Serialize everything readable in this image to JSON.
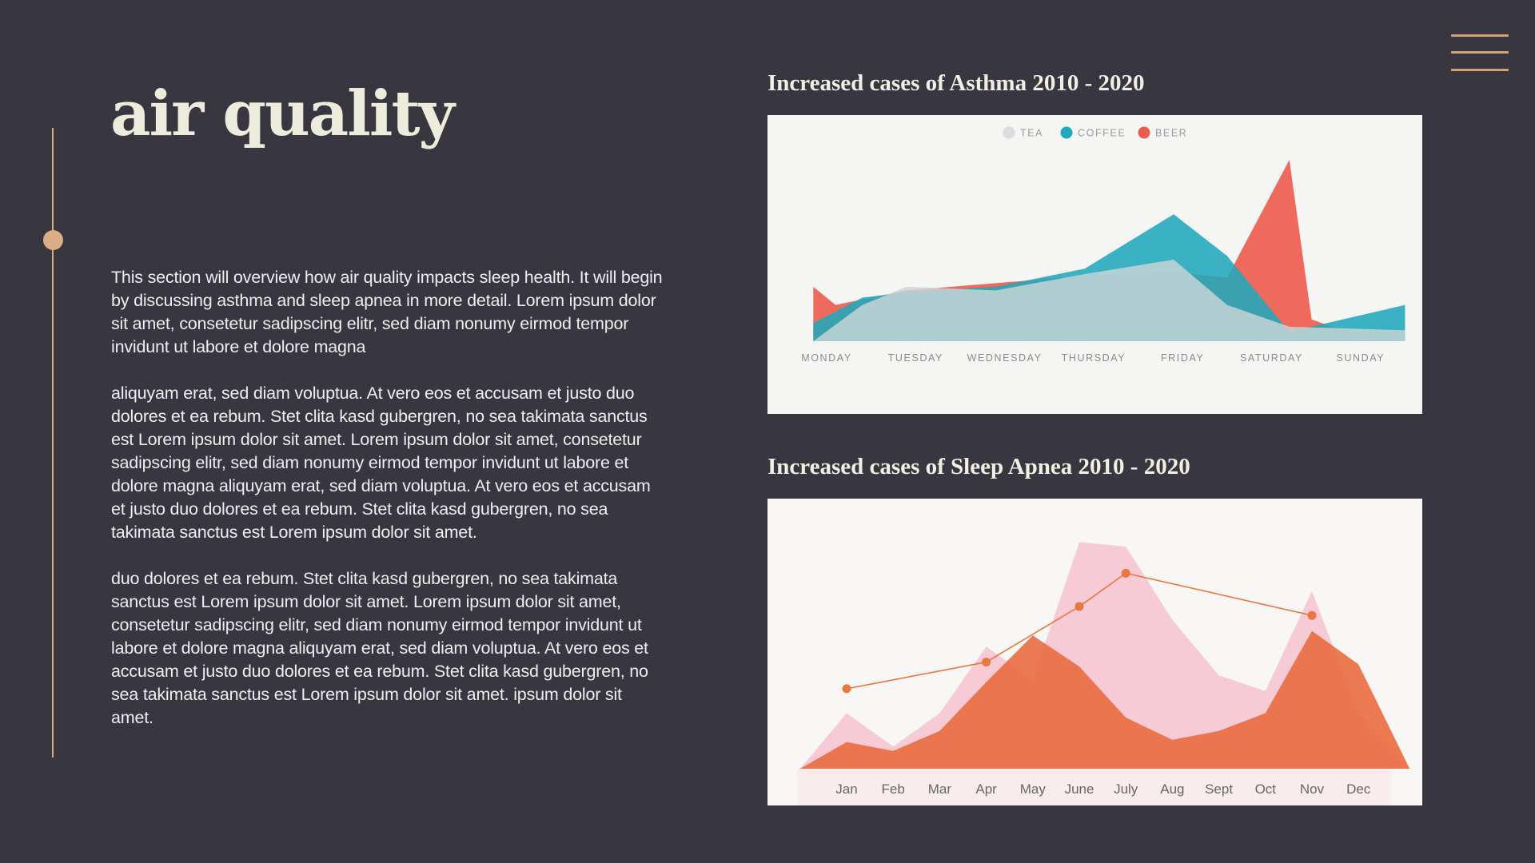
{
  "page": {
    "title": "air quality",
    "paragraphs": [
      "This section will overview how air quality impacts sleep health. It will begin by discussing asthma and sleep apnea in more detail. Lorem ipsum dolor sit amet, consetetur sadipscing elitr, sed diam nonumy eirmod tempor invidunt ut labore et dolore magna",
      "aliquyam erat, sed diam voluptua. At vero eos et accusam et justo duo dolores et ea rebum. Stet clita kasd gubergren, no sea takimata sanctus est Lorem ipsum dolor sit amet. Lorem ipsum dolor sit amet, consetetur sadipscing elitr, sed diam nonumy eirmod tempor invidunt ut labore et dolore magna aliquyam erat, sed diam voluptua. At vero eos et accusam et justo duo dolores et ea rebum. Stet clita kasd gubergren, no sea takimata sanctus est Lorem ipsum dolor sit amet.",
      "duo dolores et ea rebum. Stet clita kasd gubergren, no sea takimata sanctus est Lorem ipsum dolor sit amet. Lorem ipsum dolor sit amet, consetetur sadipscing elitr, sed diam nonumy eirmod tempor invidunt ut labore et dolore magna aliquyam erat, sed diam voluptua. At vero eos et accusam et justo duo dolores et ea rebum. Stet clita kasd gubergren, no sea takimata sanctus est Lorem ipsum dolor sit amet. ipsum dolor sit amet."
    ]
  },
  "icons": {
    "menu": "hamburger-menu-icon"
  },
  "colors": {
    "background": "#38373f",
    "accent": "#d4a373",
    "tea": "#c9d6d8",
    "coffee": "#20a9bc",
    "beer": "#ec5b4c",
    "pink": "#f6c3d0",
    "orange": "#e8693c",
    "line": "#e9773f"
  },
  "chart_data": [
    {
      "type": "area",
      "title": "Increased cases of Asthma 2010 - 2020",
      "categories": [
        "MONDAY",
        "TUESDAY",
        "WEDNESDAY",
        "THURSDAY",
        "FRIDAY",
        "SATURDAY",
        "SUNDAY"
      ],
      "legend_position": "top",
      "series": [
        {
          "name": "BEER",
          "color": "#ec5b4c",
          "x": [
            -0.15,
            0.1,
            0.9,
            1.9,
            2.9,
            3.9,
            4.5,
            5.2,
            5.45,
            5.85,
            6.5
          ],
          "values": [
            30,
            20,
            28,
            32,
            36,
            38,
            35,
            100,
            12,
            5,
            5
          ]
        },
        {
          "name": "COFFEE",
          "color": "#20a9bc",
          "x": [
            -0.15,
            0.4,
            0.9,
            1.9,
            2.9,
            3.9,
            4.5,
            5.2,
            5.45,
            6.5
          ],
          "values": [
            10,
            24,
            27,
            30,
            40,
            70,
            47,
            5,
            8,
            20
          ]
        },
        {
          "name": "TEA",
          "color": "#c9d6d8",
          "x": [
            -0.15,
            0.4,
            0.9,
            1.9,
            2.9,
            3.9,
            4.5,
            5.2,
            6.5
          ],
          "values": [
            0,
            20,
            30,
            28,
            37,
            45,
            20,
            8,
            6
          ]
        }
      ]
    },
    {
      "type": "area",
      "title": "Increased cases of Sleep Apnea 2010 - 2020",
      "categories": [
        "Jan",
        "Feb",
        "Mar",
        "Apr",
        "May",
        "June",
        "July",
        "Aug",
        "Sept",
        "Oct",
        "Nov",
        "Dec"
      ],
      "series": [
        {
          "color": "#f6c3d0",
          "x": [
            -1,
            0,
            1,
            2,
            3,
            4,
            5,
            6,
            7,
            8,
            9,
            10,
            11,
            12.1
          ],
          "values": [
            0,
            25,
            10,
            25,
            55,
            40,
            102,
            100,
            67,
            42,
            35,
            80,
            25,
            0
          ]
        },
        {
          "color": "#e8693c",
          "x": [
            -1,
            0,
            1,
            2,
            3,
            4,
            5,
            6,
            7,
            8,
            9,
            10,
            11,
            12.1
          ],
          "values": [
            0,
            12,
            8,
            17,
            39,
            60,
            46,
            23,
            13,
            17,
            25,
            62,
            47,
            0
          ]
        },
        {
          "type": "line",
          "color": "#e9773f",
          "x": [
            0,
            3,
            5,
            6,
            10
          ],
          "values": [
            36,
            48,
            73,
            88,
            69
          ]
        }
      ]
    }
  ]
}
